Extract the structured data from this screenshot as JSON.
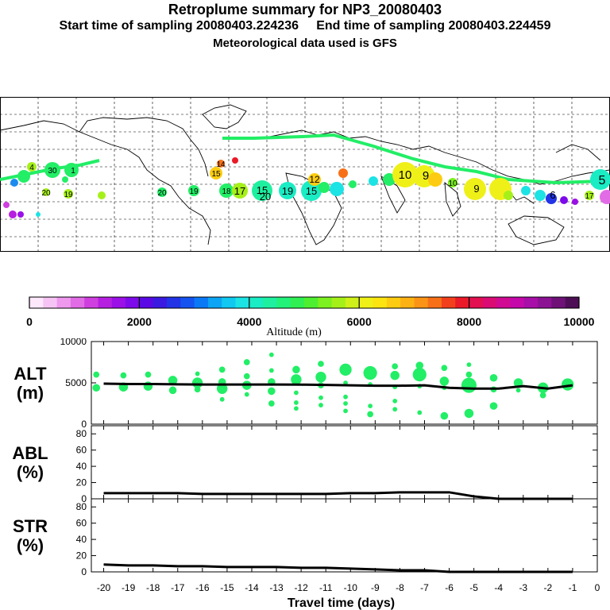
{
  "header": {
    "title": "Retroplume summary for NP3_20080403",
    "sampling_line": "Start time of sampling 20080403.224236     End time of sampling 20080403.224459",
    "met_line": "Meteorological data used is GFS"
  },
  "colors": {
    "plume": "#22ee66",
    "line": "#000000",
    "grid": "#000000"
  },
  "colorbar": {
    "label": "Altitude (m)",
    "ticks": [
      "0",
      "2000",
      "4000",
      "6000",
      "8000",
      "10000"
    ],
    "colors": [
      "#fde7fb",
      "#f6c4f4",
      "#ee98ee",
      "#e16ce6",
      "#cf3fe0",
      "#b61fe0",
      "#9a10e6",
      "#7d0aea",
      "#5a09e4",
      "#3a1ae0",
      "#2234e6",
      "#1553f0",
      "#0a79f6",
      "#0ca4f4",
      "#10c8f0",
      "#1ce3e4",
      "#1aecc4",
      "#1ef0a0",
      "#22f17a",
      "#30ef52",
      "#4eef30",
      "#7cf020",
      "#a6f01a",
      "#cff018",
      "#eff018",
      "#fbe410",
      "#fdcc12",
      "#fdb214",
      "#fb9416",
      "#f77018",
      "#f2401c",
      "#ea1a28",
      "#e21050",
      "#da0c74",
      "#d00a92",
      "#c408aa",
      "#a80ea8",
      "#8c1294",
      "#6e1278",
      "#4e0e56"
    ]
  },
  "map_labels": [
    {
      "text": "30"
    },
    {
      "text": "1"
    },
    {
      "text": "4"
    },
    {
      "text": "20"
    },
    {
      "text": "19"
    },
    {
      "text": "20"
    },
    {
      "text": "19"
    },
    {
      "text": "15"
    },
    {
      "text": "14"
    },
    {
      "text": "18"
    },
    {
      "text": "17"
    },
    {
      "text": "15"
    },
    {
      "text": "20"
    },
    {
      "text": "19"
    },
    {
      "text": "15"
    },
    {
      "text": "12"
    },
    {
      "text": "10"
    },
    {
      "text": "9"
    },
    {
      "text": "10"
    },
    {
      "text": "9"
    },
    {
      "text": "6"
    },
    {
      "text": "5"
    },
    {
      "text": "17"
    }
  ],
  "chart_data": [
    {
      "type": "scatter+line",
      "panel": "ALT",
      "ylabel": "ALT\n(m)",
      "ylabel_lines": [
        "ALT",
        "(m)"
      ],
      "ylim": [
        0,
        10000
      ],
      "yticks": [
        0,
        5000,
        10000
      ],
      "ytick_labels": [
        "0",
        "5000",
        "10000"
      ],
      "xlim": [
        -20.5,
        0
      ],
      "x": [
        -20,
        -19,
        -18,
        -17,
        -16,
        -15,
        -14,
        -13,
        -12,
        -11,
        -10,
        -9,
        -8,
        -7,
        -6,
        -5,
        -4,
        -3,
        -2,
        -1
      ],
      "median_altitude": [
        4900,
        4850,
        4850,
        4820,
        4800,
        4800,
        4800,
        4800,
        4780,
        4750,
        4700,
        4650,
        4650,
        4700,
        4400,
        4300,
        4300,
        4600,
        4300,
        4700
      ],
      "points": [
        {
          "x": -20.3,
          "y": 6000,
          "s": 3
        },
        {
          "x": -20.3,
          "y": 4400,
          "s": 4
        },
        {
          "x": -19.2,
          "y": 5900,
          "s": 3
        },
        {
          "x": -19.2,
          "y": 4500,
          "s": 5
        },
        {
          "x": -18.2,
          "y": 6000,
          "s": 3
        },
        {
          "x": -18.2,
          "y": 4600,
          "s": 5
        },
        {
          "x": -17.2,
          "y": 5300,
          "s": 5
        },
        {
          "x": -17.2,
          "y": 4100,
          "s": 4
        },
        {
          "x": -16.2,
          "y": 6100,
          "s": 2
        },
        {
          "x": -16.2,
          "y": 5000,
          "s": 6
        },
        {
          "x": -16.2,
          "y": 4200,
          "s": 3
        },
        {
          "x": -15.2,
          "y": 6600,
          "s": 3
        },
        {
          "x": -15.2,
          "y": 5100,
          "s": 4
        },
        {
          "x": -15.2,
          "y": 4300,
          "s": 6
        },
        {
          "x": -15.2,
          "y": 3000,
          "s": 2
        },
        {
          "x": -14.2,
          "y": 7500,
          "s": 3
        },
        {
          "x": -14.2,
          "y": 5800,
          "s": 3
        },
        {
          "x": -14.2,
          "y": 4700,
          "s": 5
        },
        {
          "x": -14.2,
          "y": 3600,
          "s": 2
        },
        {
          "x": -13.2,
          "y": 8400,
          "s": 2
        },
        {
          "x": -13.2,
          "y": 6500,
          "s": 2
        },
        {
          "x": -13.2,
          "y": 5100,
          "s": 4
        },
        {
          "x": -13.2,
          "y": 4000,
          "s": 4
        },
        {
          "x": -13.2,
          "y": 2500,
          "s": 3
        },
        {
          "x": -12.2,
          "y": 6600,
          "s": 4
        },
        {
          "x": -12.2,
          "y": 5400,
          "s": 6
        },
        {
          "x": -12.2,
          "y": 3800,
          "s": 2
        },
        {
          "x": -12.2,
          "y": 2600,
          "s": 2
        },
        {
          "x": -12.2,
          "y": 1900,
          "s": 2
        },
        {
          "x": -11.2,
          "y": 7300,
          "s": 3
        },
        {
          "x": -11.2,
          "y": 5700,
          "s": 6
        },
        {
          "x": -11.2,
          "y": 4700,
          "s": 3
        },
        {
          "x": -11.2,
          "y": 3200,
          "s": 2
        },
        {
          "x": -11.2,
          "y": 2300,
          "s": 2
        },
        {
          "x": -10.2,
          "y": 6600,
          "s": 7
        },
        {
          "x": -10.2,
          "y": 5000,
          "s": 2
        },
        {
          "x": -10.2,
          "y": 3300,
          "s": 2
        },
        {
          "x": -10.2,
          "y": 2500,
          "s": 2
        },
        {
          "x": -10.2,
          "y": 1600,
          "s": 2
        },
        {
          "x": -9.2,
          "y": 6200,
          "s": 8
        },
        {
          "x": -9.2,
          "y": 4800,
          "s": 2
        },
        {
          "x": -9.2,
          "y": 2200,
          "s": 2
        },
        {
          "x": -9.2,
          "y": 1200,
          "s": 3
        },
        {
          "x": -8.2,
          "y": 7000,
          "s": 3
        },
        {
          "x": -8.2,
          "y": 5900,
          "s": 5
        },
        {
          "x": -8.2,
          "y": 4500,
          "s": 2
        },
        {
          "x": -8.2,
          "y": 2800,
          "s": 2
        },
        {
          "x": -8.2,
          "y": 1800,
          "s": 2
        },
        {
          "x": -7.2,
          "y": 7100,
          "s": 4
        },
        {
          "x": -7.2,
          "y": 6000,
          "s": 8
        },
        {
          "x": -7.2,
          "y": 4600,
          "s": 2
        },
        {
          "x": -7.2,
          "y": 1400,
          "s": 2
        },
        {
          "x": -6.2,
          "y": 6800,
          "s": 3
        },
        {
          "x": -6.2,
          "y": 5200,
          "s": 5
        },
        {
          "x": -6.2,
          "y": 4400,
          "s": 2
        },
        {
          "x": -6.2,
          "y": 1000,
          "s": 4
        },
        {
          "x": -5.2,
          "y": 7200,
          "s": 2
        },
        {
          "x": -5.2,
          "y": 6000,
          "s": 3
        },
        {
          "x": -5.2,
          "y": 4700,
          "s": 9
        },
        {
          "x": -5.2,
          "y": 1300,
          "s": 5
        },
        {
          "x": -4.2,
          "y": 5600,
          "s": 4
        },
        {
          "x": -4.2,
          "y": 4200,
          "s": 3
        },
        {
          "x": -4.2,
          "y": 2200,
          "s": 4
        },
        {
          "x": -3.2,
          "y": 5000,
          "s": 5
        },
        {
          "x": -3.2,
          "y": 4100,
          "s": 2
        },
        {
          "x": -2.2,
          "y": 4400,
          "s": 6
        },
        {
          "x": -2.2,
          "y": 3500,
          "s": 3
        },
        {
          "x": -1.2,
          "y": 4800,
          "s": 7
        }
      ]
    },
    {
      "type": "line",
      "panel": "ABL",
      "ylabel_lines": [
        "ABL",
        "(%)"
      ],
      "ylim": [
        0,
        90
      ],
      "yticks": [
        0,
        20,
        40,
        60,
        80
      ],
      "ytick_labels": [
        "0",
        "20",
        "40",
        "60",
        "80"
      ],
      "xlim": [
        -20.5,
        0
      ],
      "x": [
        -20,
        -19,
        -18,
        -17,
        -16,
        -15,
        -14,
        -13,
        -12,
        -11,
        -10,
        -9,
        -8,
        -7,
        -6,
        -5,
        -4,
        -3,
        -2,
        -1
      ],
      "values": [
        7,
        7,
        7,
        7,
        6,
        6,
        6,
        6,
        6,
        6,
        7,
        7,
        8,
        8,
        8,
        3,
        0,
        0,
        0,
        0
      ]
    },
    {
      "type": "line",
      "panel": "STR",
      "ylabel_lines": [
        "STR",
        "(%)"
      ],
      "ylim": [
        0,
        90
      ],
      "yticks": [
        0,
        20,
        40,
        60,
        80
      ],
      "ytick_labels": [
        "0",
        "20",
        "40",
        "60",
        "80"
      ],
      "xlim": [
        -20.5,
        0
      ],
      "x": [
        -20,
        -19,
        -18,
        -17,
        -16,
        -15,
        -14,
        -13,
        -12,
        -11,
        -10,
        -9,
        -8,
        -7,
        -6,
        -5,
        -4,
        -3,
        -2,
        -1
      ],
      "values": [
        9,
        8,
        8,
        7,
        7,
        6,
        6,
        6,
        5,
        5,
        4,
        3,
        2,
        2,
        0,
        0,
        0,
        0,
        0,
        0
      ],
      "xlabel": "Travel time (days)",
      "xtick_labels": [
        "-20",
        "-19",
        "-18",
        "-17",
        "-16",
        "-15",
        "-14",
        "-13",
        "-12",
        "-11",
        "-10",
        "-9",
        "-8",
        "-7",
        "-6",
        "-5",
        "-4",
        "-3",
        "-2",
        "-1",
        "0"
      ]
    }
  ]
}
